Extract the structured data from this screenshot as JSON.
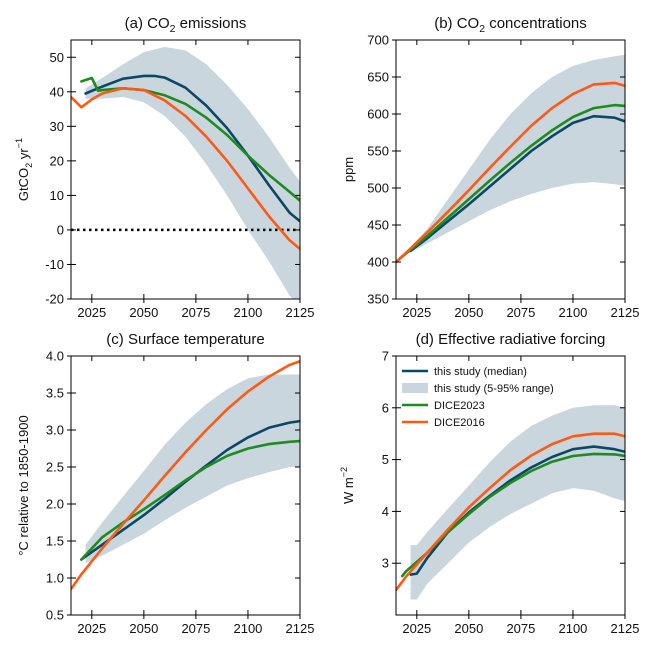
{
  "colors": {
    "median": "#0b4866",
    "range": "#c9d6de",
    "dice2023": "#1f8a1f",
    "dice2016": "#ff5a14",
    "zero_line": "#000000"
  },
  "legend": {
    "placement": "top-left of panel d",
    "items": [
      {
        "key": "median",
        "label": "this study (median)",
        "kind": "line"
      },
      {
        "key": "range",
        "label": "this study (5-95% range)",
        "kind": "patch"
      },
      {
        "key": "dice2023",
        "label": "DICE2023",
        "kind": "line"
      },
      {
        "key": "dice2016",
        "label": "DICE2016",
        "kind": "line"
      }
    ]
  },
  "chart_data": [
    {
      "id": "a",
      "type": "line",
      "title_parts": [
        "(a) CO",
        "2",
        " emissions"
      ],
      "ylabel_parts": [
        "GtCO",
        "2",
        " yr",
        "−1"
      ],
      "xlim": [
        2015,
        2125
      ],
      "ylim": [
        -20,
        55
      ],
      "xticks": [
        2025,
        2050,
        2075,
        2100,
        2125
      ],
      "yticks": [
        -20,
        -10,
        0,
        10,
        20,
        30,
        40,
        50
      ],
      "hline": 0,
      "band": {
        "x": [
          2022,
          2030,
          2040,
          2050,
          2060,
          2070,
          2080,
          2090,
          2100,
          2110,
          2120,
          2125
        ],
        "lower": [
          38,
          38,
          38.5,
          37,
          33,
          27,
          19,
          10,
          0,
          -9,
          -19,
          -22
        ],
        "upper": [
          41,
          44,
          48,
          51.5,
          53,
          52,
          48,
          42,
          35,
          27,
          18,
          14
        ]
      },
      "series": [
        {
          "key": "median",
          "name": "this study (median)",
          "x": [
            2022,
            2030,
            2040,
            2050,
            2055,
            2060,
            2070,
            2080,
            2090,
            2100,
            2110,
            2120,
            2125
          ],
          "y": [
            39.5,
            41.5,
            43.8,
            44.6,
            44.6,
            44.1,
            41.2,
            36,
            29.5,
            21.5,
            13,
            5,
            2.5
          ]
        },
        {
          "key": "dice2023",
          "name": "DICE2023",
          "x": [
            2020,
            2025,
            2028,
            2030,
            2040,
            2050,
            2060,
            2070,
            2080,
            2090,
            2100,
            2110,
            2120,
            2125
          ],
          "y": [
            43,
            44,
            40.3,
            40.5,
            41,
            40.5,
            39,
            36.5,
            32.5,
            27.5,
            21.5,
            16,
            11,
            8.5
          ]
        },
        {
          "key": "dice2016",
          "name": "DICE2016",
          "x": [
            2015,
            2020,
            2025,
            2030,
            2040,
            2050,
            2060,
            2070,
            2080,
            2090,
            2100,
            2110,
            2120,
            2125
          ],
          "y": [
            38.5,
            35.5,
            37.8,
            39.5,
            41,
            40.5,
            37.5,
            33,
            27,
            20,
            12,
            4,
            -3,
            -5.5
          ]
        }
      ]
    },
    {
      "id": "b",
      "type": "line",
      "title_parts": [
        "(b) CO",
        "2",
        " concentrations"
      ],
      "ylabel_parts": [
        "ppm"
      ],
      "xlim": [
        2015,
        2125
      ],
      "ylim": [
        350,
        700
      ],
      "xticks": [
        2025,
        2050,
        2075,
        2100,
        2125
      ],
      "yticks": [
        350,
        400,
        450,
        500,
        550,
        600,
        650,
        700
      ],
      "band": {
        "x": [
          2020,
          2030,
          2040,
          2050,
          2060,
          2070,
          2080,
          2090,
          2100,
          2110,
          2120,
          2125
        ],
        "lower": [
          410,
          425,
          440,
          455,
          470,
          482,
          492,
          500,
          506,
          508,
          505,
          503
        ],
        "upper": [
          414,
          445,
          485,
          525,
          565,
          600,
          628,
          650,
          665,
          673,
          678,
          680
        ]
      },
      "series": [
        {
          "key": "median",
          "name": "this study (median)",
          "x": [
            2022,
            2030,
            2040,
            2050,
            2060,
            2070,
            2080,
            2090,
            2100,
            2110,
            2120,
            2125
          ],
          "y": [
            415,
            432,
            455,
            478,
            502,
            526,
            550,
            570,
            588,
            597,
            595,
            590
          ]
        },
        {
          "key": "dice2023",
          "name": "DICE2023",
          "x": [
            2015,
            2020,
            2030,
            2040,
            2050,
            2060,
            2070,
            2080,
            2090,
            2100,
            2110,
            2120,
            2125
          ],
          "y": [
            400,
            412,
            435,
            460,
            485,
            510,
            534,
            557,
            578,
            596,
            608,
            612,
            611
          ]
        },
        {
          "key": "dice2016",
          "name": "DICE2016",
          "x": [
            2015,
            2020,
            2030,
            2040,
            2050,
            2060,
            2070,
            2080,
            2090,
            2100,
            2110,
            2120,
            2125
          ],
          "y": [
            400,
            413,
            440,
            468,
            497,
            527,
            556,
            584,
            608,
            627,
            640,
            642,
            638
          ]
        }
      ]
    },
    {
      "id": "c",
      "type": "line",
      "title_parts": [
        "(c) Surface temperature"
      ],
      "ylabel_parts": [
        "°C relative to 1850-1900"
      ],
      "xlim": [
        2015,
        2125
      ],
      "ylim": [
        0.5,
        4.0
      ],
      "xticks": [
        2025,
        2050,
        2075,
        2100,
        2125
      ],
      "yticks": [
        0.5,
        1.0,
        1.5,
        2.0,
        2.5,
        3.0,
        3.5,
        4.0
      ],
      "ytick_labels": [
        "0.5",
        "1.0",
        "1.5",
        "2.0",
        "2.5",
        "3.0",
        "3.5",
        "4.0"
      ],
      "band": {
        "x": [
          2022,
          2030,
          2040,
          2050,
          2060,
          2070,
          2080,
          2090,
          2100,
          2110,
          2120,
          2125
        ],
        "lower": [
          1.2,
          1.3,
          1.45,
          1.6,
          1.78,
          1.95,
          2.1,
          2.25,
          2.35,
          2.43,
          2.5,
          2.5
        ],
        "upper": [
          1.45,
          1.75,
          2.1,
          2.45,
          2.8,
          3.1,
          3.35,
          3.55,
          3.7,
          3.75,
          3.75,
          3.75
        ]
      },
      "series": [
        {
          "key": "median",
          "name": "this study (median)",
          "x": [
            2020,
            2030,
            2040,
            2050,
            2060,
            2070,
            2080,
            2090,
            2100,
            2110,
            2120,
            2125
          ],
          "y": [
            1.25,
            1.45,
            1.65,
            1.85,
            2.07,
            2.3,
            2.52,
            2.73,
            2.9,
            3.03,
            3.1,
            3.12
          ]
        },
        {
          "key": "dice2023",
          "name": "DICE2023",
          "x": [
            2020,
            2030,
            2040,
            2050,
            2060,
            2070,
            2080,
            2090,
            2100,
            2110,
            2120,
            2125
          ],
          "y": [
            1.25,
            1.55,
            1.75,
            1.93,
            2.12,
            2.32,
            2.5,
            2.65,
            2.75,
            2.81,
            2.84,
            2.85
          ]
        },
        {
          "key": "dice2016",
          "name": "DICE2016",
          "x": [
            2015,
            2020,
            2030,
            2040,
            2050,
            2060,
            2070,
            2080,
            2090,
            2100,
            2110,
            2120,
            2125
          ],
          "y": [
            0.85,
            1.05,
            1.4,
            1.73,
            2.05,
            2.38,
            2.7,
            3.0,
            3.28,
            3.52,
            3.72,
            3.88,
            3.93
          ]
        }
      ]
    },
    {
      "id": "d",
      "type": "line",
      "title_parts": [
        "(d) Effective radiative forcing"
      ],
      "ylabel_parts": [
        "W m",
        "−2"
      ],
      "xlim": [
        2015,
        2125
      ],
      "ylim": [
        2.0,
        7.0
      ],
      "xticks": [
        2025,
        2050,
        2075,
        2100,
        2125
      ],
      "yticks": [
        3,
        4,
        5,
        6,
        7
      ],
      "band": {
        "x": [
          2022,
          2025,
          2030,
          2040,
          2050,
          2060,
          2070,
          2080,
          2090,
          2100,
          2110,
          2120,
          2125
        ],
        "lower": [
          2.3,
          2.3,
          2.6,
          3.0,
          3.4,
          3.7,
          3.95,
          4.15,
          4.35,
          4.45,
          4.4,
          4.25,
          4.2
        ],
        "upper": [
          3.35,
          3.35,
          3.6,
          4.05,
          4.5,
          4.95,
          5.35,
          5.65,
          5.85,
          6.0,
          6.05,
          6.05,
          6.0
        ]
      },
      "series": [
        {
          "key": "median",
          "name": "this study (median)",
          "x": [
            2022,
            2025,
            2030,
            2040,
            2050,
            2060,
            2070,
            2080,
            2090,
            2100,
            2110,
            2120,
            2125
          ],
          "y": [
            2.78,
            2.8,
            3.1,
            3.6,
            3.98,
            4.3,
            4.6,
            4.85,
            5.05,
            5.2,
            5.25,
            5.2,
            5.15
          ]
        },
        {
          "key": "dice2023",
          "name": "DICE2023",
          "x": [
            2018,
            2020,
            2030,
            2040,
            2050,
            2060,
            2070,
            2080,
            2090,
            2100,
            2110,
            2120,
            2125
          ],
          "y": [
            2.75,
            2.85,
            3.2,
            3.6,
            3.95,
            4.28,
            4.55,
            4.78,
            4.96,
            5.07,
            5.11,
            5.1,
            5.07
          ]
        },
        {
          "key": "dice2016",
          "name": "DICE2016",
          "x": [
            2015,
            2020,
            2030,
            2040,
            2050,
            2060,
            2070,
            2080,
            2090,
            2100,
            2110,
            2120,
            2125
          ],
          "y": [
            2.48,
            2.75,
            3.2,
            3.65,
            4.08,
            4.45,
            4.8,
            5.08,
            5.3,
            5.45,
            5.5,
            5.5,
            5.45
          ]
        }
      ]
    }
  ]
}
